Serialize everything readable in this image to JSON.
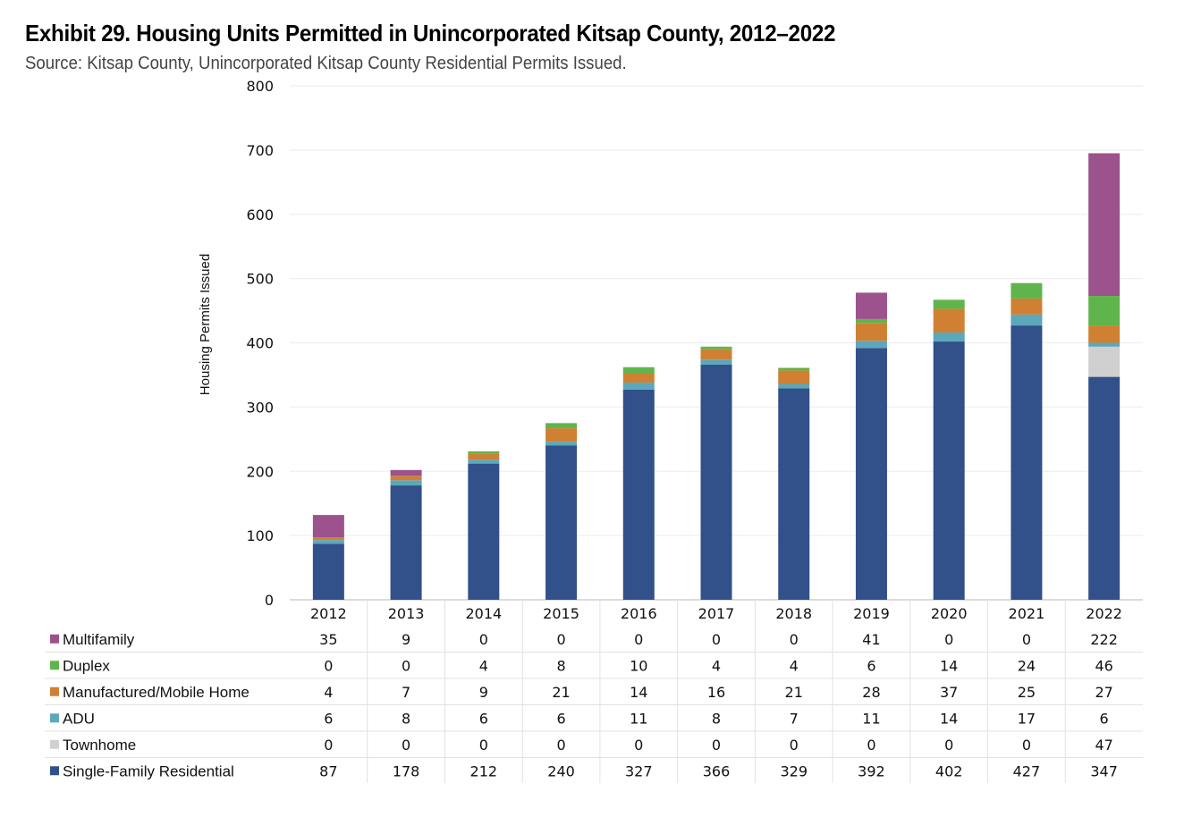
{
  "title": "Exhibit 29. Housing Units Permitted in Unincorporated Kitsap County, 2012–2022",
  "subtitle": "Source: Kitsap County, Unincorporated Kitsap County Residential Permits Issued.",
  "chart_data": {
    "type": "bar",
    "stacked": true,
    "title": "Exhibit 29. Housing Units Permitted in Unincorporated Kitsap County, 2012–2022",
    "subtitle": "Source: Kitsap County, Unincorporated Kitsap County Residential Permits Issued.",
    "xlabel": "",
    "ylabel": "Housing Permits Issued",
    "ylim": [
      0,
      800
    ],
    "yticks": [
      0,
      100,
      200,
      300,
      400,
      500,
      600,
      700,
      800
    ],
    "grid": true,
    "legend": "data-table-below",
    "categories": [
      "2012",
      "2013",
      "2014",
      "2015",
      "2016",
      "2017",
      "2018",
      "2019",
      "2020",
      "2021",
      "2022"
    ],
    "series": [
      {
        "name": "Single-Family Residential",
        "color": "#325089",
        "values": [
          87,
          178,
          212,
          240,
          327,
          366,
          329,
          392,
          402,
          427,
          347
        ]
      },
      {
        "name": "Townhome",
        "color": "#d0d0d0",
        "values": [
          0,
          0,
          0,
          0,
          0,
          0,
          0,
          0,
          0,
          0,
          47
        ]
      },
      {
        "name": "ADU",
        "color": "#5ba8bd",
        "values": [
          6,
          8,
          6,
          6,
          11,
          8,
          7,
          11,
          14,
          17,
          6
        ]
      },
      {
        "name": "Manufactured/Mobile Home",
        "color": "#d08033",
        "values": [
          4,
          7,
          9,
          21,
          14,
          16,
          21,
          28,
          37,
          25,
          27
        ]
      },
      {
        "name": "Duplex",
        "color": "#5fb54b",
        "values": [
          0,
          0,
          4,
          8,
          10,
          4,
          4,
          6,
          14,
          24,
          46
        ]
      },
      {
        "name": "Multifamily",
        "color": "#9c528c",
        "values": [
          35,
          9,
          0,
          0,
          0,
          0,
          0,
          41,
          0,
          0,
          222
        ]
      }
    ],
    "table_row_order": [
      "Multifamily",
      "Duplex",
      "Manufactured/Mobile Home",
      "ADU",
      "Townhome",
      "Single-Family Residential"
    ]
  }
}
